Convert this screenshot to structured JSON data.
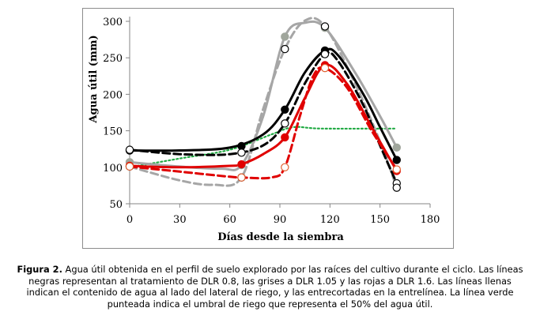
{
  "chart_data": {
    "type": "line",
    "xlabel": "Días desde la siembra",
    "ylabel": "Agua útil (mm)",
    "xlim": [
      0,
      180
    ],
    "ylim": [
      50,
      300
    ],
    "xticks": [
      "0",
      "30",
      "60",
      "90",
      "120",
      "150",
      "180"
    ],
    "yticks": [
      "50",
      "100",
      "150",
      "200",
      "250",
      "300"
    ],
    "colors": {
      "black": "#000000",
      "grey": "#a6a6a6",
      "red": "#e00000",
      "green": "#22aa44",
      "grey_marker": "#a0a69c"
    },
    "series": [
      {
        "name": "DLR 0.8 - lado del lateral de riego (llena)",
        "color": "#000000",
        "dash": "solid",
        "marker": "filled",
        "x": [
          0,
          67,
          93,
          117,
          160
        ],
        "y": [
          123,
          129,
          179,
          260,
          110
        ],
        "curve": [
          [
            0,
            123
          ],
          [
            30,
            123
          ],
          [
            60,
            127
          ],
          [
            80,
            145
          ],
          [
            93,
            179
          ],
          [
            105,
            230
          ],
          [
            117,
            260
          ],
          [
            125,
            253
          ],
          [
            140,
            200
          ],
          [
            150,
            155
          ],
          [
            160,
            110
          ]
        ]
      },
      {
        "name": "DLR 0.8 - entrelínea (entrecortada)",
        "color": "#000000",
        "dash": "dashed",
        "marker": "open",
        "x": [
          0,
          67,
          93,
          117,
          160
        ],
        "y": [
          124,
          120,
          160,
          255,
          78
        ],
        "curve": [
          [
            0,
            124
          ],
          [
            30,
            118
          ],
          [
            60,
            118
          ],
          [
            80,
            130
          ],
          [
            93,
            160
          ],
          [
            105,
            215
          ],
          [
            117,
            255
          ],
          [
            125,
            245
          ],
          [
            140,
            185
          ],
          [
            150,
            130
          ],
          [
            160,
            78
          ]
        ]
      },
      {
        "name": "DLR 1.05 - lado del lateral de riego (llena)",
        "color": "#a6a6a6",
        "dash": "solid",
        "marker": "filled",
        "x": [
          0,
          67,
          93,
          117,
          160
        ],
        "y": [
          107,
          103,
          279,
          291,
          127
        ],
        "curve": [
          [
            0,
            107
          ],
          [
            30,
            101
          ],
          [
            55,
            98
          ],
          [
            67,
            103
          ],
          [
            80,
            170
          ],
          [
            93,
            279
          ],
          [
            105,
            298
          ],
          [
            117,
            291
          ],
          [
            135,
            230
          ],
          [
            150,
            170
          ],
          [
            160,
            127
          ]
        ]
      },
      {
        "name": "DLR 1.05 - entrelínea (entrecortada)",
        "color": "#a6a6a6",
        "dash": "dashed",
        "marker": "open",
        "x": [
          0,
          67,
          93,
          117,
          160
        ],
        "y": [
          101,
          86,
          262,
          293,
          72
        ],
        "curve": [
          [
            0,
            101
          ],
          [
            30,
            82
          ],
          [
            50,
            76
          ],
          [
            67,
            86
          ],
          [
            80,
            180
          ],
          [
            93,
            262
          ],
          [
            105,
            301
          ],
          [
            117,
            293
          ],
          [
            135,
            215
          ],
          [
            150,
            135
          ],
          [
            160,
            72
          ]
        ]
      },
      {
        "name": "DLR 1.6 - lado del lateral de riego (llena)",
        "color": "#e00000",
        "dash": "solid",
        "marker": "filled",
        "x": [
          0,
          67,
          93,
          117,
          160
        ],
        "y": [
          102,
          104,
          141,
          240,
          95
        ],
        "curve": [
          [
            0,
            102
          ],
          [
            30,
            100
          ],
          [
            60,
            102
          ],
          [
            67,
            104
          ],
          [
            80,
            118
          ],
          [
            93,
            141
          ],
          [
            105,
            195
          ],
          [
            117,
            240
          ],
          [
            130,
            215
          ],
          [
            145,
            155
          ],
          [
            160,
            95
          ]
        ]
      },
      {
        "name": "DLR 1.6 - entrelínea (entrecortada)",
        "color": "#e00000",
        "dash": "dashed",
        "marker": "open",
        "x": [
          0,
          67,
          93,
          117,
          160
        ],
        "y": [
          101,
          86,
          100,
          236,
          97
        ],
        "curve": [
          [
            0,
            101
          ],
          [
            30,
            94
          ],
          [
            60,
            87
          ],
          [
            67,
            86
          ],
          [
            85,
            86
          ],
          [
            93,
            100
          ],
          [
            102,
            170
          ],
          [
            110,
            225
          ],
          [
            117,
            236
          ],
          [
            130,
            210
          ],
          [
            145,
            150
          ],
          [
            160,
            97
          ]
        ]
      },
      {
        "name": "Umbral de riego (50% del agua útil)",
        "color": "#22aa44",
        "dash": "dotted",
        "marker": "none",
        "x": [
          0,
          60,
          90,
          100,
          160
        ],
        "y": [
          100,
          124,
          150,
          155,
          153
        ],
        "curve": [
          [
            0,
            100
          ],
          [
            30,
            112
          ],
          [
            60,
            124
          ],
          [
            85,
            145
          ],
          [
            98,
            155
          ],
          [
            115,
            153
          ],
          [
            160,
            153
          ]
        ]
      }
    ]
  },
  "caption": {
    "label": "Figura 2.",
    "text": " Agua útil obtenida en el perfil de suelo explorado por las raíces del cultivo durante el ciclo. Las líneas negras representan al tratamiento de DLR 0.8, las grises a DLR 1.05 y las rojas a DLR 1.6. Las líneas llenas indican el contenido de agua al lado del lateral de riego, y las entrecortadas en la entrelínea. La línea verde punteada indica el umbral de riego que representa el 50% del agua útil."
  }
}
